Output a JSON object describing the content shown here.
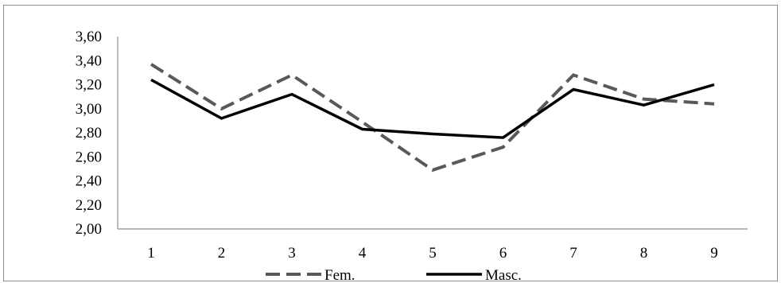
{
  "chart_data": {
    "type": "line",
    "categories": [
      "1",
      "2",
      "3",
      "4",
      "5",
      "6",
      "7",
      "8",
      "9"
    ],
    "y_ticks": [
      "2,00",
      "2,20",
      "2,40",
      "2,60",
      "2,80",
      "3,00",
      "3,20",
      "3,40",
      "3,60"
    ],
    "ylim": [
      2.0,
      3.6
    ],
    "grid": false,
    "legend_position": "bottom",
    "series": [
      {
        "name": "Fem.",
        "style": "dashed",
        "color": "#595959",
        "values": [
          3.37,
          3.0,
          3.28,
          2.89,
          2.49,
          2.68,
          3.28,
          3.08,
          3.04
        ]
      },
      {
        "name": "Masc.",
        "style": "solid",
        "color": "#000000",
        "values": [
          3.24,
          2.92,
          3.12,
          2.83,
          2.79,
          2.76,
          3.16,
          3.03,
          3.2
        ]
      }
    ]
  }
}
